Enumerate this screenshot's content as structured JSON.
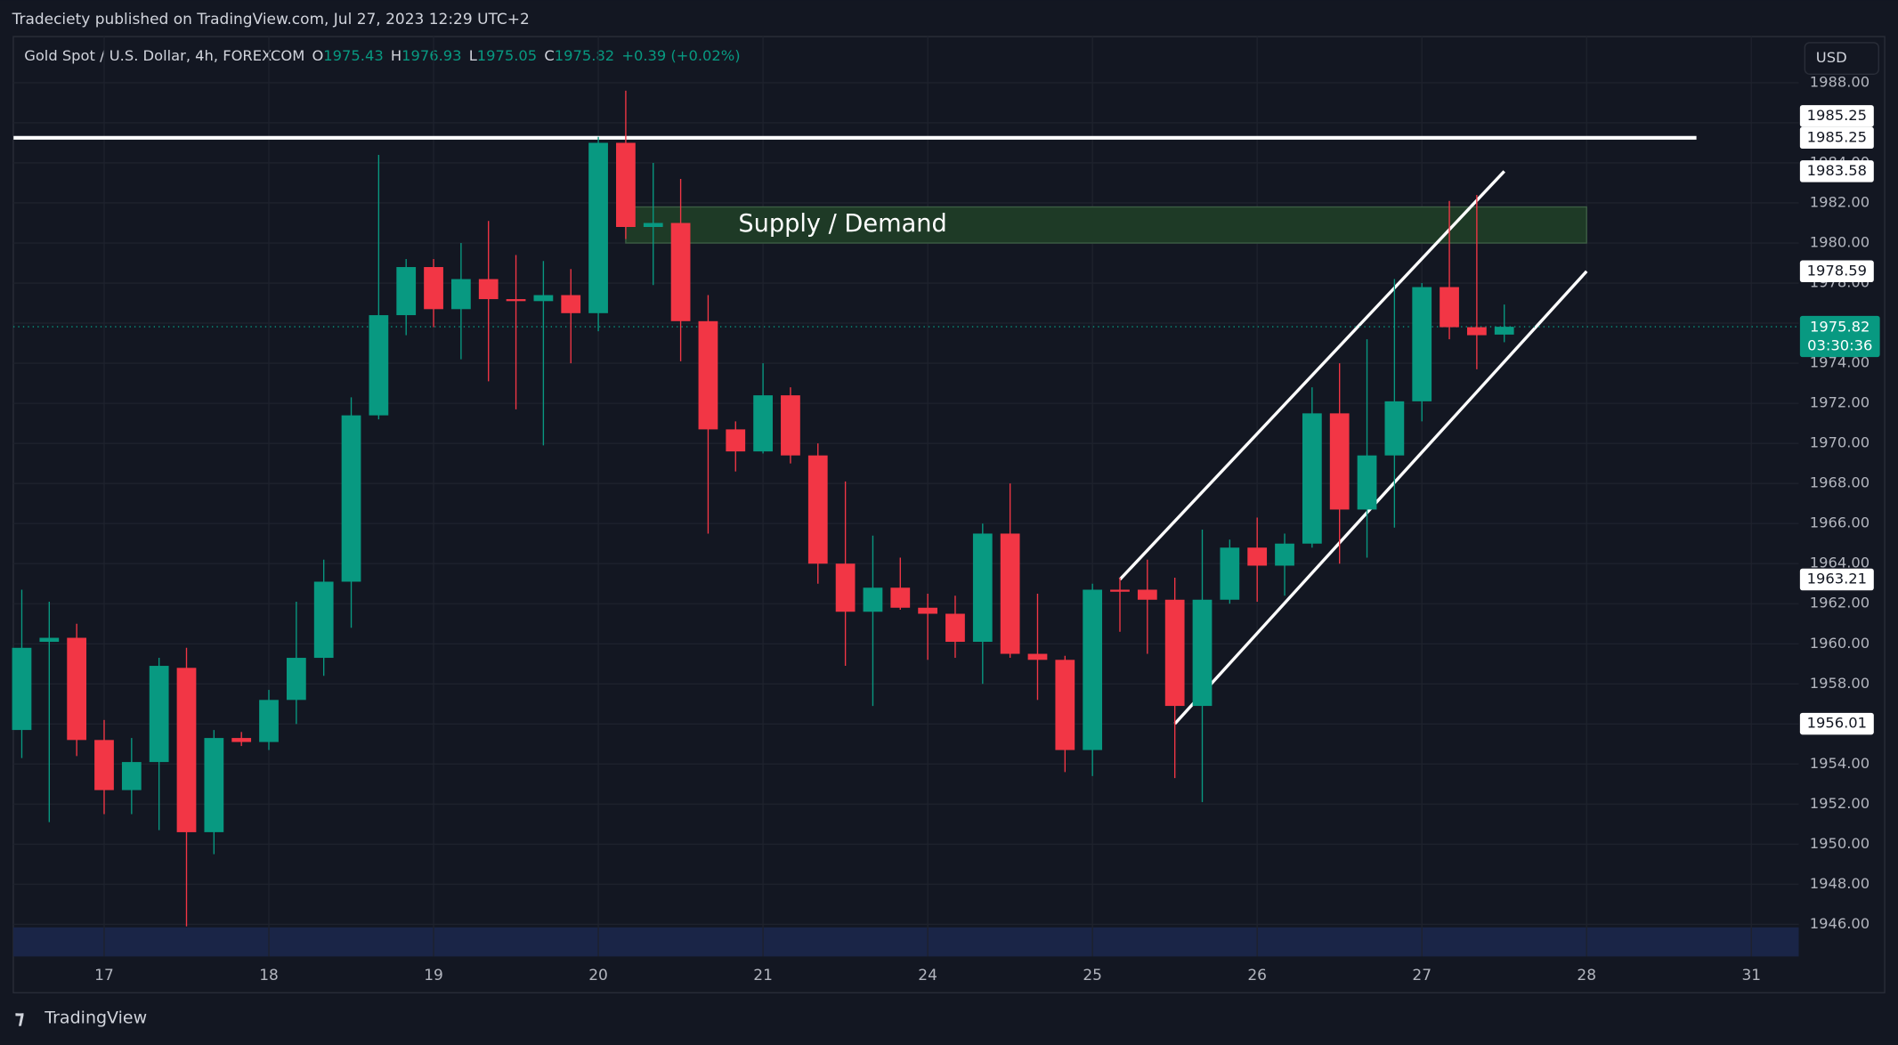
{
  "header": {
    "attribution": "Tradeciety published on TradingView.com, Jul 27, 2023 12:29 UTC+2",
    "currency": "USD",
    "ohlc_labels": [
      "O",
      "H",
      "L",
      "C"
    ],
    "change": "+0.39 (+0.02%)",
    "countdown": "03:30:36",
    "brand": "TradingView"
  },
  "chart_data": {
    "type": "candlestick",
    "title": "Gold Spot / U.S. Dollar, 4h, FOREXCOM",
    "up_color": "#089981",
    "down_color": "#f23645",
    "grid": true,
    "categories": [
      null,
      null,
      null,
      "17",
      null,
      null,
      null,
      null,
      null,
      "18",
      null,
      null,
      null,
      null,
      null,
      "19",
      null,
      null,
      null,
      null,
      null,
      "20",
      null,
      null,
      null,
      null,
      null,
      "21",
      null,
      null,
      null,
      null,
      null,
      "24",
      null,
      null,
      null,
      null,
      null,
      "25",
      null,
      null,
      null,
      null,
      null,
      "26",
      null,
      null,
      null,
      null,
      null,
      "27",
      null,
      null,
      null,
      null,
      null,
      "28",
      null,
      null,
      null,
      null,
      null,
      "31"
    ],
    "series": [
      {
        "name": "open",
        "values": [
          1955.7,
          1960.1,
          1960.3,
          1955.2,
          1952.7,
          1954.1,
          1958.8,
          1950.6,
          1955.3,
          1955.1,
          1957.2,
          1959.3,
          1963.1,
          1971.4,
          1976.4,
          1978.8,
          1976.7,
          1978.2,
          1977.2,
          1977.1,
          1977.4,
          1976.5,
          1985.0,
          1980.8,
          1981.0,
          1976.1,
          1970.7,
          1969.6,
          1972.4,
          1969.4,
          1964.0,
          1961.6,
          1962.8,
          1961.8,
          1961.5,
          1960.1,
          1965.5,
          1959.5,
          1959.2,
          1954.7,
          1962.7,
          1962.7,
          1962.2,
          1956.9,
          1962.2,
          1964.8,
          1963.9,
          1965.0,
          1971.5,
          1966.7,
          1969.4,
          1972.1,
          1977.8,
          1975.8,
          1975.43,
          null,
          null,
          null,
          null,
          null,
          null,
          null,
          null,
          null
        ]
      },
      {
        "name": "high",
        "values": [
          1962.7,
          1962.1,
          1961.0,
          1956.2,
          1955.3,
          1959.3,
          1959.8,
          1955.7,
          1955.6,
          1957.7,
          1962.1,
          1964.2,
          1972.3,
          1984.4,
          1979.2,
          1979.2,
          1980.0,
          1981.1,
          1979.4,
          1979.1,
          1978.7,
          1985.3,
          1987.6,
          1984.0,
          1983.2,
          1977.4,
          1971.1,
          1974.0,
          1972.8,
          1970.0,
          1968.1,
          1965.4,
          1964.3,
          1962.5,
          1962.4,
          1966.0,
          1968.0,
          1962.5,
          1959.4,
          1963.0,
          1963.3,
          1964.2,
          1963.3,
          1965.7,
          1965.2,
          1966.3,
          1965.5,
          1972.8,
          1974.0,
          1975.2,
          1978.2,
          1978.0,
          1982.1,
          1982.4,
          1976.93,
          null,
          null,
          null,
          null,
          null,
          null,
          null,
          null,
          null
        ]
      },
      {
        "name": "low",
        "values": [
          1954.3,
          1951.1,
          1954.4,
          1951.5,
          1951.5,
          1950.7,
          1945.9,
          1949.5,
          1954.9,
          1954.7,
          1956.0,
          1958.4,
          1960.8,
          1971.2,
          1975.4,
          1975.8,
          1974.2,
          1973.1,
          1971.7,
          1969.9,
          1974.0,
          1975.6,
          1980.2,
          1977.9,
          1974.1,
          1965.5,
          1968.6,
          1969.5,
          1969.0,
          1963.0,
          1958.9,
          1956.9,
          1961.7,
          1959.2,
          1959.3,
          1958.0,
          1959.3,
          1957.2,
          1953.6,
          1953.4,
          1960.6,
          1959.5,
          1953.3,
          1952.1,
          1962.0,
          1962.1,
          1962.4,
          1964.8,
          1964.0,
          1964.3,
          1965.8,
          1971.1,
          1975.2,
          1973.7,
          1975.05,
          null,
          null,
          null,
          null,
          null,
          null,
          null,
          null,
          null
        ]
      },
      {
        "name": "close",
        "values": [
          1959.8,
          1960.3,
          1955.2,
          1952.7,
          1954.1,
          1958.9,
          1950.6,
          1955.3,
          1955.1,
          1957.2,
          1959.3,
          1963.1,
          1971.4,
          1976.4,
          1978.8,
          1976.7,
          1978.2,
          1977.2,
          1977.1,
          1977.4,
          1976.5,
          1985.0,
          1980.8,
          1981.0,
          1976.1,
          1970.7,
          1969.6,
          1972.4,
          1969.4,
          1964.0,
          1961.6,
          1962.8,
          1961.8,
          1961.5,
          1960.1,
          1965.5,
          1959.5,
          1959.2,
          1954.7,
          1962.7,
          1962.6,
          1962.2,
          1956.9,
          1962.2,
          1964.8,
          1963.9,
          1965.0,
          1971.5,
          1966.7,
          1969.4,
          1972.1,
          1977.8,
          1975.8,
          1975.4,
          1975.82,
          null,
          null,
          null,
          null,
          null,
          null,
          null,
          null,
          null
        ]
      }
    ],
    "ylim": [
      1944.4,
      1990.3
    ],
    "yticks": [
      {
        "value": 1946,
        "label": "1946.00"
      },
      {
        "value": 1948,
        "label": "1948.00"
      },
      {
        "value": 1950,
        "label": "1950.00"
      },
      {
        "value": 1952,
        "label": "1952.00"
      },
      {
        "value": 1954,
        "label": "1954.00"
      },
      {
        "value": 1956,
        "label": "1956.00"
      },
      {
        "value": 1958,
        "label": "1958.00"
      },
      {
        "value": 1960,
        "label": "1960.00"
      },
      {
        "value": 1962,
        "label": "1962.00"
      },
      {
        "value": 1964,
        "label": "1964.00"
      },
      {
        "value": 1966,
        "label": "1966.00"
      },
      {
        "value": 1968,
        "label": "1968.00"
      },
      {
        "value": 1970,
        "label": "1970.00"
      },
      {
        "value": 1972,
        "label": "1972.00"
      },
      {
        "value": 1974,
        "label": "1974.00"
      },
      {
        "value": 1976,
        "label": "1976.00"
      },
      {
        "value": 1978,
        "label": "1978.00"
      },
      {
        "value": 1980,
        "label": "1980.00"
      },
      {
        "value": 1982,
        "label": "1982.00"
      },
      {
        "value": 1984,
        "label": "1984.00"
      },
      {
        "value": 1986,
        "label": "1986.00"
      },
      {
        "value": 1988,
        "label": "1988.00"
      }
    ],
    "hline": {
      "value": 1985.25,
      "x": [
        -0.3,
        61.0
      ],
      "color": "#ffffff"
    },
    "zone": {
      "label": "Supply / Demand",
      "low": 1980.0,
      "high": 1981.8,
      "x": [
        22,
        57
      ],
      "color": "#1e3a26"
    },
    "channel": [
      {
        "x": [
          40,
          54
        ],
        "y": [
          1963.21,
          1983.58
        ]
      },
      {
        "x": [
          42,
          57
        ],
        "y": [
          1956.01,
          1978.59
        ]
      }
    ]
  }
}
